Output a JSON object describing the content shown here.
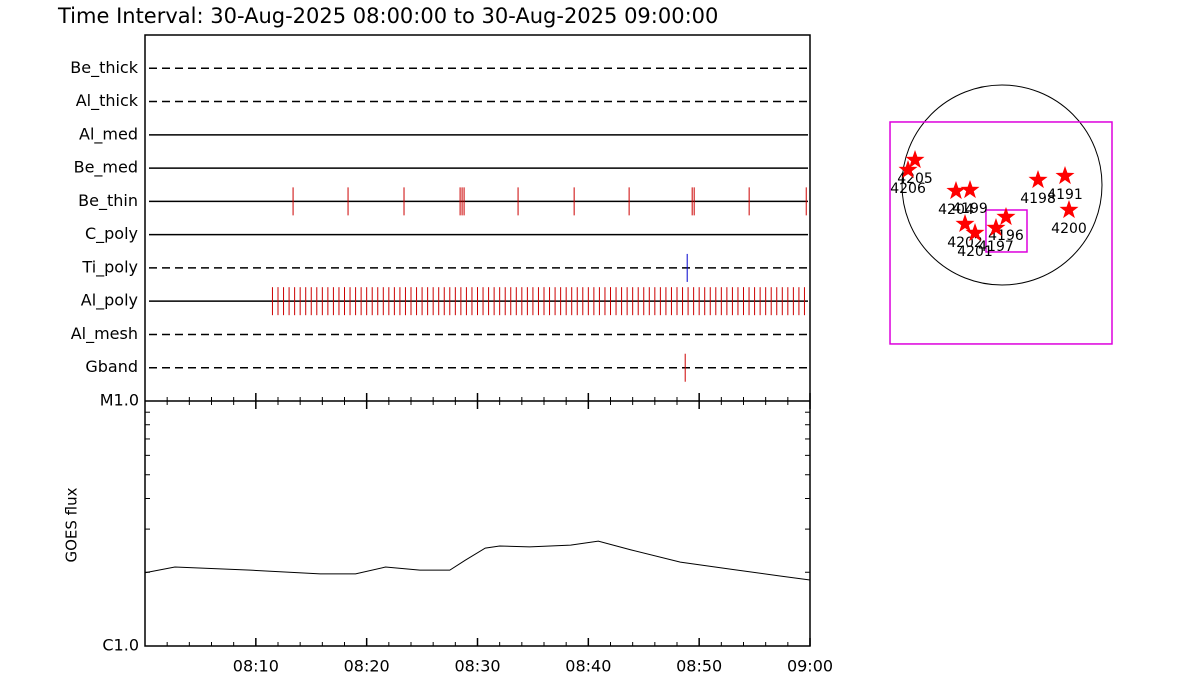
{
  "chart_data": [
    {
      "type": "timeline",
      "title": "Time Interval: 30-Aug-2025 08:00:00 to 30-Aug-2025 09:00:00",
      "xlim": [
        0,
        60
      ],
      "rows": [
        {
          "name": "Be_thick",
          "style": "dashed",
          "color": "#cc0000",
          "events": []
        },
        {
          "name": "Al_thick",
          "style": "dashed",
          "color": "#cc0000",
          "events": []
        },
        {
          "name": "Al_med",
          "style": "solid",
          "color": "#cc0000",
          "events": []
        },
        {
          "name": "Be_med",
          "style": "solid",
          "color": "#cc0000",
          "events": []
        },
        {
          "name": "Be_thin",
          "style": "solid",
          "color": "#cc0000",
          "events": [
            13.36,
            18.32,
            23.37,
            28.43,
            28.61,
            28.79,
            33.66,
            38.72,
            43.68,
            49.37,
            49.55,
            54.51,
            59.66
          ]
        },
        {
          "name": "C_poly",
          "style": "solid",
          "color": "#cc0000",
          "events": []
        },
        {
          "name": "Ti_poly",
          "style": "dashed",
          "color": "#0000cc",
          "events": [
            48.92
          ]
        },
        {
          "name": "Al_poly",
          "style": "solid",
          "color": "#cc0000",
          "events": [
            11.5,
            12,
            12.5,
            13,
            13.5,
            14,
            14.5,
            15,
            15.5,
            16,
            16.5,
            17,
            17.5,
            18,
            18.5,
            19,
            19.5,
            20,
            20.5,
            21,
            21.5,
            22,
            22.5,
            23,
            23.5,
            24,
            24.5,
            25,
            25.5,
            26,
            26.5,
            27,
            27.5,
            28,
            28.5,
            29,
            29.5,
            30,
            30.5,
            31,
            31.5,
            32,
            32.5,
            33,
            33.5,
            34,
            34.5,
            35,
            35.5,
            36,
            36.5,
            37,
            37.5,
            38,
            38.5,
            39,
            39.5,
            40,
            40.5,
            41,
            41.5,
            42,
            42.5,
            43,
            43.5,
            44,
            44.5,
            45,
            45.5,
            46,
            46.5,
            47,
            47.5,
            48,
            48.5,
            49,
            49.5,
            50,
            50.5,
            51,
            51.5,
            52,
            52.5,
            53,
            53.5,
            54,
            54.5,
            55,
            55.5,
            56,
            56.5,
            57,
            57.5,
            58,
            58.5,
            59,
            59.5
          ]
        },
        {
          "name": "Al_mesh",
          "style": "dashed",
          "color": "#cc0000",
          "events": []
        },
        {
          "name": "Gband",
          "style": "dashed",
          "color": "#cc0000",
          "events": [
            48.74
          ]
        }
      ]
    },
    {
      "type": "line",
      "ylabel": "GOES flux",
      "log_y": true,
      "xlim": [
        0,
        60
      ],
      "xticks": [
        {
          "value": 10,
          "label": "08:10"
        },
        {
          "value": 20,
          "label": "08:20"
        },
        {
          "value": 30,
          "label": "08:30"
        },
        {
          "value": 40,
          "label": "08:40"
        },
        {
          "value": 50,
          "label": "08:50"
        },
        {
          "value": 60,
          "label": "09:00"
        }
      ],
      "xminorticks": [
        2,
        4,
        6,
        8,
        12,
        14,
        16,
        18,
        22,
        24,
        26,
        28,
        32,
        34,
        36,
        38,
        42,
        44,
        46,
        48,
        52,
        54,
        56,
        58
      ],
      "ylim": [
        1e-06,
        1e-05
      ],
      "yticks": [
        {
          "value": 1e-06,
          "label": "C1.0"
        },
        {
          "value": 1e-05,
          "label": "M1.0"
        }
      ],
      "yminorticks": [
        2e-06,
        3e-06,
        4e-06,
        5e-06,
        6e-06,
        7e-06,
        8e-06,
        9e-06
      ],
      "x": [
        0,
        2.7,
        9.5,
        15.8,
        19,
        21.7,
        24.8,
        27.5,
        28.9,
        30.7,
        32,
        34.7,
        38.4,
        40.9,
        43.8,
        48.3,
        52.8,
        57.3,
        60
      ],
      "series": [
        {
          "color": "#000000",
          "values": [
            1.99e-06,
            2.1e-06,
            2.04e-06,
            1.97e-06,
            1.97e-06,
            2.1e-06,
            2.04e-06,
            2.04e-06,
            2.24e-06,
            2.51e-06,
            2.56e-06,
            2.54e-06,
            2.58e-06,
            2.68e-06,
            2.47e-06,
            2.2e-06,
            2.06e-06,
            1.93e-06,
            1.86e-06
          ]
        }
      ]
    },
    {
      "type": "disk",
      "radius": 960,
      "fov": [
        [
          -1075,
          1056,
          -1526,
          605
        ],
        [
          -154,
          240,
          -643,
          -240
        ]
      ],
      "regions": [
        {
          "label": "4205",
          "x": -835,
          "y": 240
        },
        {
          "label": "4206",
          "x": -902,
          "y": 144
        },
        {
          "label": "4204",
          "x": -442,
          "y": -58
        },
        {
          "label": "4199",
          "x": -307,
          "y": -48
        },
        {
          "label": "4202",
          "x": -355,
          "y": -374
        },
        {
          "label": "4201",
          "x": -259,
          "y": -461
        },
        {
          "label": "4196",
          "x": 38,
          "y": -307
        },
        {
          "label": "4197",
          "x": -58,
          "y": -413
        },
        {
          "label": "4198",
          "x": 346,
          "y": 48
        },
        {
          "label": "4191",
          "x": 605,
          "y": 86
        },
        {
          "label": "4200",
          "x": 643,
          "y": -240
        }
      ]
    }
  ]
}
